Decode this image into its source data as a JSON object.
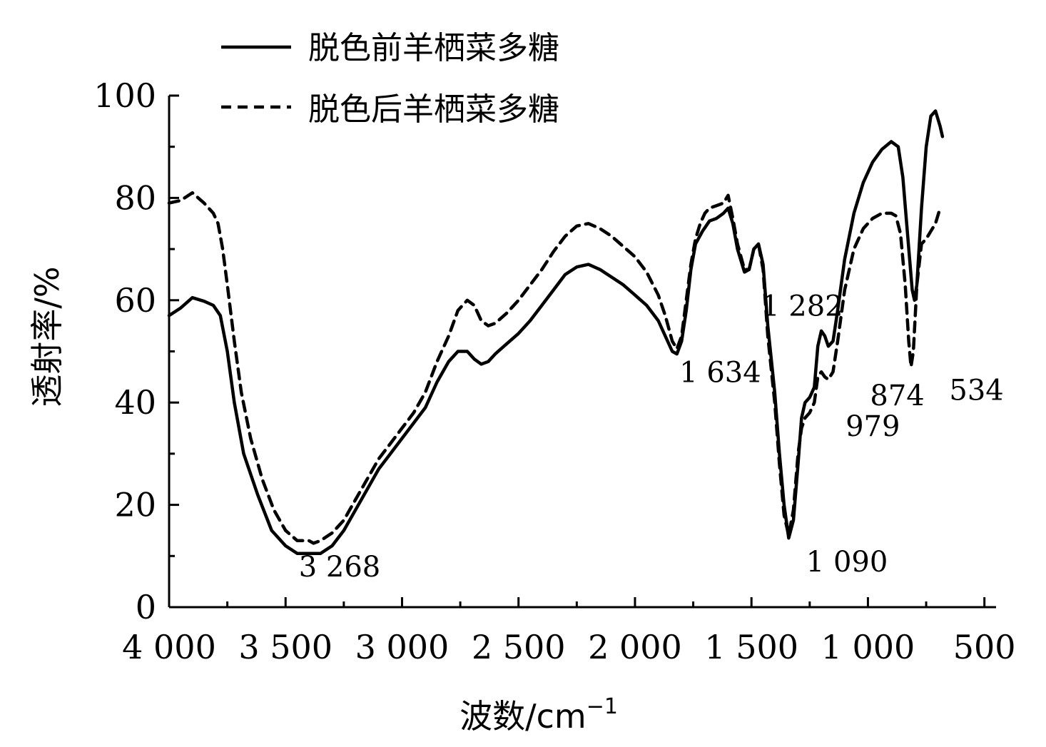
{
  "chart_data": {
    "type": "line",
    "title": "",
    "xlabel": "波数/cm",
    "xlabel_superscript": "−1",
    "ylabel": "透射率/%",
    "xlim": [
      4000,
      450
    ],
    "ylim": [
      0,
      100
    ],
    "x_reversed": true,
    "x_ticks": [
      {
        "value": 4000,
        "label": "4 000"
      },
      {
        "value": 3500,
        "label": "3 500"
      },
      {
        "value": 3000,
        "label": "3 000"
      },
      {
        "value": 2500,
        "label": "2 500"
      },
      {
        "value": 2000,
        "label": "2 000"
      },
      {
        "value": 1500,
        "label": "1 500"
      },
      {
        "value": 1000,
        "label": "1 000"
      },
      {
        "value": 500,
        "label": "500"
      }
    ],
    "y_ticks": [
      {
        "value": 0,
        "label": "0"
      },
      {
        "value": 20,
        "label": "20"
      },
      {
        "value": 40,
        "label": "40"
      },
      {
        "value": 60,
        "label": "60"
      },
      {
        "value": 80,
        "label": "80"
      },
      {
        "value": 100,
        "label": "100"
      }
    ],
    "legend_position": "top-left",
    "series": [
      {
        "name": "脱色前羊栖菜多糖",
        "style": "solid",
        "color": "#000000",
        "points": [
          [
            4000,
            57
          ],
          [
            3950,
            58.5
          ],
          [
            3900,
            60.5
          ],
          [
            3850,
            59.8
          ],
          [
            3810,
            59
          ],
          [
            3780,
            57
          ],
          [
            3750,
            50
          ],
          [
            3720,
            40
          ],
          [
            3680,
            30
          ],
          [
            3620,
            22
          ],
          [
            3560,
            15
          ],
          [
            3500,
            12
          ],
          [
            3450,
            10.5
          ],
          [
            3400,
            10.5
          ],
          [
            3350,
            10.5
          ],
          [
            3300,
            12
          ],
          [
            3250,
            15
          ],
          [
            3200,
            19
          ],
          [
            3150,
            23
          ],
          [
            3100,
            27
          ],
          [
            3050,
            30
          ],
          [
            3000,
            33
          ],
          [
            2950,
            36
          ],
          [
            2900,
            39
          ],
          [
            2850,
            44
          ],
          [
            2800,
            48
          ],
          [
            2760,
            50
          ],
          [
            2720,
            50
          ],
          [
            2690,
            48.5
          ],
          [
            2660,
            47.5
          ],
          [
            2630,
            48
          ],
          [
            2600,
            49.5
          ],
          [
            2550,
            51.5
          ],
          [
            2500,
            53.5
          ],
          [
            2450,
            56
          ],
          [
            2400,
            59
          ],
          [
            2350,
            62
          ],
          [
            2300,
            65
          ],
          [
            2250,
            66.5
          ],
          [
            2200,
            67
          ],
          [
            2150,
            66
          ],
          [
            2100,
            64.5
          ],
          [
            2050,
            63
          ],
          [
            2000,
            61
          ],
          [
            1950,
            59
          ],
          [
            1900,
            56
          ],
          [
            1870,
            53
          ],
          [
            1840,
            50
          ],
          [
            1820,
            49.5
          ],
          [
            1800,
            52
          ],
          [
            1780,
            58
          ],
          [
            1760,
            66
          ],
          [
            1740,
            71
          ],
          [
            1710,
            73.5
          ],
          [
            1680,
            75.5
          ],
          [
            1650,
            76
          ],
          [
            1620,
            77
          ],
          [
            1600,
            78
          ],
          [
            1580,
            75
          ],
          [
            1560,
            70
          ],
          [
            1530,
            65.5
          ],
          [
            1510,
            66
          ],
          [
            1490,
            70
          ],
          [
            1470,
            71
          ],
          [
            1450,
            67
          ],
          [
            1430,
            55
          ],
          [
            1400,
            42
          ],
          [
            1380,
            30
          ],
          [
            1360,
            20
          ],
          [
            1340,
            13.5
          ],
          [
            1320,
            17
          ],
          [
            1300,
            28
          ],
          [
            1285,
            37
          ],
          [
            1270,
            40
          ],
          [
            1250,
            41
          ],
          [
            1230,
            43
          ],
          [
            1215,
            51
          ],
          [
            1200,
            54
          ],
          [
            1185,
            53
          ],
          [
            1170,
            51
          ],
          [
            1150,
            52
          ],
          [
            1130,
            58
          ],
          [
            1100,
            68
          ],
          [
            1060,
            77
          ],
          [
            1020,
            83
          ],
          [
            980,
            87
          ],
          [
            940,
            89.5
          ],
          [
            900,
            91
          ],
          [
            870,
            90
          ],
          [
            850,
            84
          ],
          [
            830,
            73
          ],
          [
            810,
            62
          ],
          [
            800,
            60
          ],
          [
            790,
            63
          ],
          [
            770,
            78
          ],
          [
            750,
            90
          ],
          [
            730,
            96
          ],
          [
            710,
            97
          ],
          [
            690,
            94
          ],
          [
            680,
            92
          ]
        ]
      },
      {
        "name": "脱色后羊栖菜多糖",
        "style": "dashed",
        "color": "#000000",
        "points": [
          [
            4000,
            79
          ],
          [
            3950,
            79.5
          ],
          [
            3900,
            81
          ],
          [
            3850,
            79
          ],
          [
            3810,
            77
          ],
          [
            3790,
            75
          ],
          [
            3770,
            70
          ],
          [
            3750,
            63
          ],
          [
            3720,
            52
          ],
          [
            3690,
            42
          ],
          [
            3650,
            33
          ],
          [
            3600,
            25
          ],
          [
            3550,
            19
          ],
          [
            3500,
            15
          ],
          [
            3450,
            13
          ],
          [
            3400,
            13
          ],
          [
            3380,
            12.5
          ],
          [
            3350,
            13
          ],
          [
            3300,
            14.5
          ],
          [
            3250,
            17
          ],
          [
            3200,
            21
          ],
          [
            3150,
            25
          ],
          [
            3100,
            29
          ],
          [
            3050,
            32
          ],
          [
            3000,
            35
          ],
          [
            2950,
            38
          ],
          [
            2900,
            42
          ],
          [
            2850,
            48
          ],
          [
            2800,
            53
          ],
          [
            2760,
            58
          ],
          [
            2720,
            60
          ],
          [
            2690,
            59
          ],
          [
            2660,
            56
          ],
          [
            2630,
            55
          ],
          [
            2600,
            55.5
          ],
          [
            2550,
            57.5
          ],
          [
            2500,
            60
          ],
          [
            2450,
            63
          ],
          [
            2400,
            66
          ],
          [
            2350,
            69.5
          ],
          [
            2300,
            72.5
          ],
          [
            2250,
            74.5
          ],
          [
            2200,
            75
          ],
          [
            2150,
            74
          ],
          [
            2100,
            72.5
          ],
          [
            2050,
            70.5
          ],
          [
            2000,
            68.5
          ],
          [
            1950,
            65.5
          ],
          [
            1900,
            61
          ],
          [
            1870,
            57
          ],
          [
            1840,
            52
          ],
          [
            1820,
            50.5
          ],
          [
            1800,
            53
          ],
          [
            1780,
            60
          ],
          [
            1760,
            67
          ],
          [
            1740,
            72
          ],
          [
            1720,
            75
          ],
          [
            1700,
            77
          ],
          [
            1680,
            78
          ],
          [
            1650,
            78.5
          ],
          [
            1620,
            79
          ],
          [
            1600,
            80.5
          ],
          [
            1580,
            76
          ],
          [
            1560,
            71
          ],
          [
            1530,
            66
          ],
          [
            1510,
            66
          ],
          [
            1490,
            70
          ],
          [
            1470,
            71
          ],
          [
            1450,
            66
          ],
          [
            1430,
            53
          ],
          [
            1400,
            40
          ],
          [
            1380,
            28
          ],
          [
            1360,
            18
          ],
          [
            1340,
            14
          ],
          [
            1320,
            19
          ],
          [
            1300,
            30
          ],
          [
            1285,
            35
          ],
          [
            1270,
            37
          ],
          [
            1250,
            38
          ],
          [
            1230,
            40
          ],
          [
            1215,
            45
          ],
          [
            1200,
            46
          ],
          [
            1185,
            45
          ],
          [
            1170,
            44.5
          ],
          [
            1150,
            46
          ],
          [
            1130,
            52
          ],
          [
            1100,
            62
          ],
          [
            1060,
            70
          ],
          [
            1020,
            74
          ],
          [
            980,
            76
          ],
          [
            940,
            77
          ],
          [
            900,
            77
          ],
          [
            880,
            76.5
          ],
          [
            860,
            73
          ],
          [
            840,
            63
          ],
          [
            825,
            52
          ],
          [
            815,
            47
          ],
          [
            805,
            50
          ],
          [
            790,
            63
          ],
          [
            770,
            71
          ],
          [
            750,
            72
          ],
          [
            730,
            73.5
          ],
          [
            710,
            75
          ],
          [
            690,
            78
          ]
        ]
      }
    ],
    "annotations": [
      {
        "label": "3 268",
        "x": 3268,
        "y": 6
      },
      {
        "label": "1 634",
        "x": 1634,
        "y": 44
      },
      {
        "label": "1 282",
        "x": 1282,
        "y": 57
      },
      {
        "label": "1 090",
        "x": 1090,
        "y": 7
      },
      {
        "label": "979",
        "x": 979,
        "y": 33.5
      },
      {
        "label": "874",
        "x": 874,
        "y": 39.5
      },
      {
        "label": "534",
        "x": 534,
        "y": 40.5
      }
    ]
  }
}
